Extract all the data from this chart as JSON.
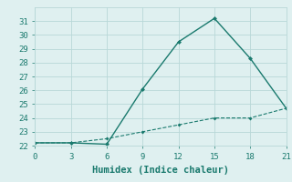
{
  "line1_x": [
    0,
    3,
    6,
    9,
    12,
    15,
    18,
    21
  ],
  "line1_y": [
    22.2,
    22.2,
    22.1,
    26.1,
    29.5,
    31.2,
    28.3,
    24.7
  ],
  "line2_x": [
    0,
    3,
    6,
    9,
    12,
    15,
    18,
    21
  ],
  "line2_y": [
    22.2,
    22.2,
    22.5,
    23.0,
    23.5,
    24.0,
    24.0,
    24.7
  ],
  "line_color": "#1a7a6e",
  "xlabel": "Humidex (Indice chaleur)",
  "ylim": [
    22,
    32
  ],
  "xlim": [
    0,
    21
  ],
  "yticks": [
    22,
    23,
    24,
    25,
    26,
    27,
    28,
    29,
    30,
    31
  ],
  "xticks": [
    0,
    3,
    6,
    9,
    12,
    15,
    18,
    21
  ],
  "bg_color": "#dff0f0",
  "grid_color": "#b8d8d8",
  "font_family": "monospace",
  "font_size_ticks": 6.5,
  "font_size_xlabel": 7.5
}
